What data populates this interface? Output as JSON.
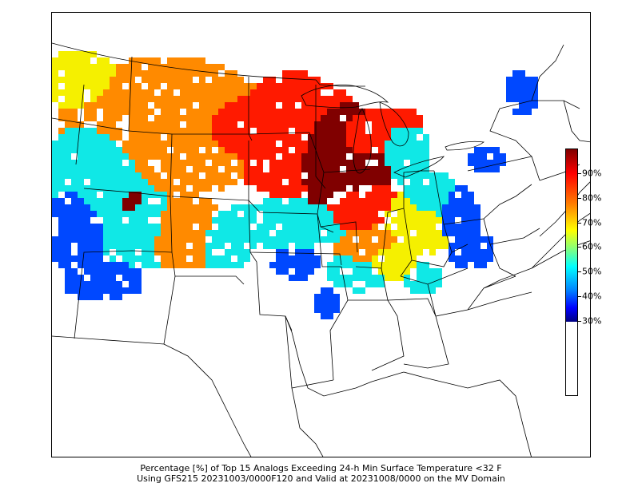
{
  "caption": {
    "line1": "Percentage [%] of Top 15 Analogs Exceeding 24-h Min Surface Temperature <32 F",
    "line2": "Using GFS215 20231003/0000F120 and Valid at 20231008/0000 on the MV Domain"
  },
  "colorbar": {
    "min": 30,
    "max": 100,
    "ticks": [
      {
        "value": 30,
        "label": "30%"
      },
      {
        "value": 40,
        "label": "40%"
      },
      {
        "value": 50,
        "label": "50%"
      },
      {
        "value": 60,
        "label": "60%"
      },
      {
        "value": 70,
        "label": "70%"
      },
      {
        "value": 80,
        "label": "80%"
      },
      {
        "value": 90,
        "label": "90%"
      }
    ],
    "colormap": "jet",
    "below_min_color": "#ffffff"
  },
  "map": {
    "region": "Central and Eastern United States",
    "field_colors": {
      "dark_red": "#800000",
      "red": "#ff1a00",
      "orange": "#ff8a00",
      "yellow": "#f5f000",
      "cyan": "#10e8e6",
      "blue": "#0048ff",
      "dark_blue": "#0000c8"
    }
  }
}
